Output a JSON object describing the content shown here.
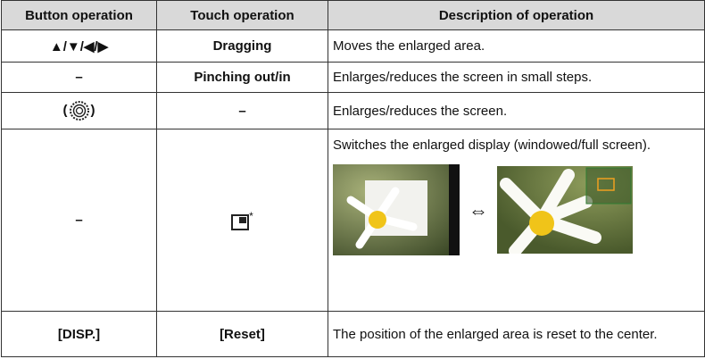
{
  "table": {
    "header": [
      "Button operation",
      "Touch operation",
      "Description of operation"
    ],
    "rows": [
      [
        "▲/▼/◀/▶",
        "Dragging",
        "Moves the enlarged area."
      ],
      [
        "–",
        "Pinching out/in",
        "Enlarges/reduces the screen in small steps."
      ],
      [
        {
          "open": "(",
          "close": ")"
        },
        "–",
        "Enlarges/reduces the screen."
      ],
      [
        "–",
        {
          "note": "*"
        },
        {
          "text": "Switches the enlarged display (windowed/full screen).",
          "arrow": "⇔"
        }
      ],
      [
        "[DISP.]",
        "[Reset]",
        "The position of the enlarged area is reset to the center."
      ]
    ]
  }
}
